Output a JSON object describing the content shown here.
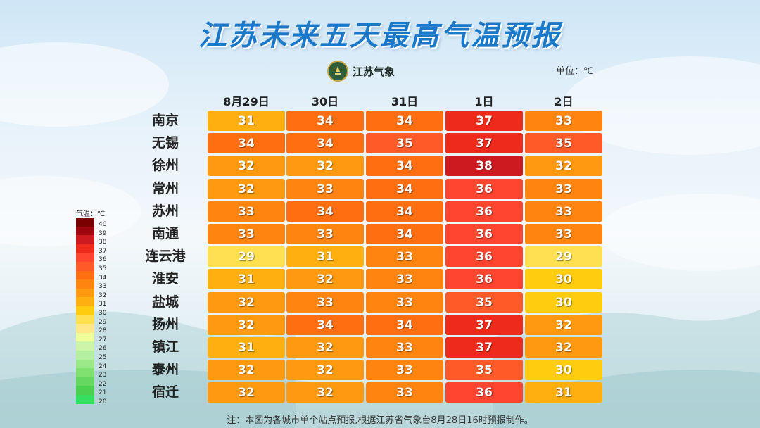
{
  "title": "江苏未来五天最高气温预报",
  "logo_text": "江苏气象",
  "unit_label": "单位：℃",
  "footnote": "注：本图为各城市单个站点预报,根据江苏省气象台8月28日16时预报制作。",
  "chart_data": {
    "type": "heatmap",
    "title": "江苏未来五天最高气温预报",
    "columns": [
      "8月29日",
      "30日",
      "31日",
      "1日",
      "2日"
    ],
    "rows": [
      "南京",
      "无锡",
      "徐州",
      "常州",
      "苏州",
      "南通",
      "连云港",
      "淮安",
      "盐城",
      "扬州",
      "镇江",
      "泰州",
      "宿迁"
    ],
    "values": [
      [
        31,
        34,
        34,
        37,
        33
      ],
      [
        34,
        34,
        35,
        37,
        35
      ],
      [
        32,
        32,
        34,
        38,
        32
      ],
      [
        32,
        33,
        34,
        36,
        33
      ],
      [
        33,
        34,
        34,
        36,
        33
      ],
      [
        33,
        33,
        34,
        36,
        33
      ],
      [
        29,
        31,
        33,
        36,
        29
      ],
      [
        31,
        32,
        33,
        36,
        30
      ],
      [
        32,
        33,
        33,
        35,
        30
      ],
      [
        32,
        34,
        34,
        37,
        32
      ],
      [
        31,
        32,
        33,
        37,
        32
      ],
      [
        32,
        32,
        33,
        35,
        30
      ],
      [
        32,
        32,
        33,
        36,
        31
      ]
    ],
    "unit": "℃",
    "legend": {
      "title": "气温：℃",
      "levels": [
        40,
        39,
        38,
        37,
        36,
        35,
        34,
        33,
        32,
        31,
        30,
        29,
        28,
        27,
        26,
        25,
        24,
        23,
        22,
        21,
        20
      ],
      "colors": {
        "40": "#7a0000",
        "39": "#a00810",
        "38": "#cc1a20",
        "37": "#ee2a1a",
        "36": "#ff4530",
        "35": "#ff5a28",
        "34": "#ff6e10",
        "33": "#ff8410",
        "32": "#ff9a10",
        "31": "#ffb010",
        "30": "#ffcc10",
        "29": "#ffe050",
        "28": "#ffe888",
        "27": "#eeff99",
        "26": "#ccf5a8",
        "25": "#b4f0a0",
        "24": "#9aea8a",
        "23": "#80e070",
        "22": "#66d860",
        "21": "#4cd050",
        "20": "#33e060"
      }
    }
  }
}
